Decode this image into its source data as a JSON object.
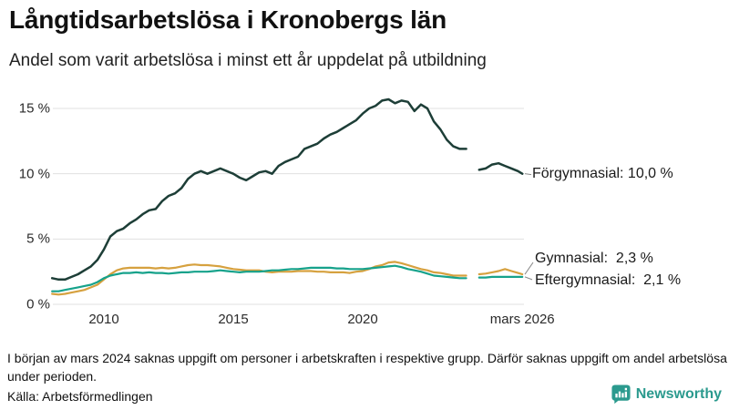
{
  "header": {
    "title": "Långtidsarbetslösa i Kronobergs län",
    "subtitle": "Andel som varit arbetslösa i minst ett år uppdelat på utbildning"
  },
  "footer": {
    "footnote": "I början av mars 2024 saknas uppgift om personer i arbetskraften i respektive grupp. Därför saknas uppgift om andel arbetslösa under perioden.",
    "source": "Källa: Arbetsförmedlingen"
  },
  "branding": {
    "name": "Newsworthy",
    "color": "#2b9a8e"
  },
  "colors": {
    "forgymnasial": "#1d3e37",
    "gymnasial": "#d6a13f",
    "eftergymnasial": "#16a28b",
    "gridline": "#e0e0e0",
    "connector": "#8a8a8a",
    "text": "#1a1a1a"
  },
  "chart_data": {
    "type": "line",
    "title": "Långtidsarbetslösa i Kronobergs län",
    "xlabel": "",
    "ylabel": "",
    "xlim": [
      2008,
      2026.17
    ],
    "ylim": [
      0,
      16
    ],
    "grid": true,
    "legend_position": "end-of-line-labels",
    "gap_period": "mars 2024",
    "x": [
      2008.0,
      2008.25,
      2008.5,
      2008.75,
      2009.0,
      2009.25,
      2009.5,
      2009.75,
      2010.0,
      2010.25,
      2010.5,
      2010.75,
      2011.0,
      2011.25,
      2011.5,
      2011.75,
      2012.0,
      2012.25,
      2012.5,
      2012.75,
      2013.0,
      2013.25,
      2013.5,
      2013.75,
      2014.0,
      2014.25,
      2014.5,
      2014.75,
      2015.0,
      2015.25,
      2015.5,
      2015.75,
      2016.0,
      2016.25,
      2016.5,
      2016.75,
      2017.0,
      2017.25,
      2017.5,
      2017.75,
      2018.0,
      2018.25,
      2018.5,
      2018.75,
      2019.0,
      2019.25,
      2019.5,
      2019.75,
      2020.0,
      2020.25,
      2020.5,
      2020.75,
      2021.0,
      2021.25,
      2021.5,
      2021.75,
      2022.0,
      2022.25,
      2022.5,
      2022.75,
      2023.0,
      2023.25,
      2023.5,
      2023.75,
      2024.0,
      2024.25,
      2024.5,
      2024.75,
      2025.0,
      2025.25,
      2025.5,
      2025.75,
      2026.0,
      2026.17
    ],
    "series": [
      {
        "name": "Förgymnasial",
        "label": "Förgymnasial: 10,0 %",
        "end_value": "10,0 %",
        "color": "#1d3e37",
        "stroke_width": 2.5,
        "values": [
          2.0,
          1.9,
          1.9,
          2.1,
          2.3,
          2.6,
          2.9,
          3.4,
          4.2,
          5.2,
          5.6,
          5.8,
          6.2,
          6.5,
          6.9,
          7.2,
          7.3,
          7.9,
          8.3,
          8.5,
          8.9,
          9.6,
          10.0,
          10.2,
          10.0,
          10.2,
          10.4,
          10.2,
          10.0,
          9.7,
          9.5,
          9.8,
          10.1,
          10.2,
          10.0,
          10.6,
          10.9,
          11.1,
          11.3,
          11.9,
          12.1,
          12.3,
          12.7,
          13.0,
          13.2,
          13.5,
          13.8,
          14.1,
          14.6,
          15.0,
          15.2,
          15.6,
          15.7,
          15.4,
          15.6,
          15.5,
          14.8,
          15.3,
          15.0,
          14.0,
          13.4,
          12.6,
          12.1,
          11.9,
          11.9,
          null,
          10.3,
          10.4,
          10.7,
          10.8,
          10.6,
          10.4,
          10.2,
          10.0
        ]
      },
      {
        "name": "Gymnasial",
        "label": "Gymnasial:  2,3 %",
        "end_value": "2,3 %",
        "color": "#d6a13f",
        "stroke_width": 2.2,
        "values": [
          0.8,
          0.75,
          0.8,
          0.9,
          1.0,
          1.1,
          1.3,
          1.5,
          1.9,
          2.3,
          2.6,
          2.75,
          2.8,
          2.8,
          2.8,
          2.8,
          2.75,
          2.8,
          2.75,
          2.8,
          2.9,
          3.0,
          3.05,
          3.0,
          3.0,
          2.95,
          2.9,
          2.8,
          2.7,
          2.65,
          2.6,
          2.6,
          2.6,
          2.5,
          2.45,
          2.5,
          2.5,
          2.5,
          2.55,
          2.55,
          2.55,
          2.5,
          2.5,
          2.45,
          2.45,
          2.45,
          2.4,
          2.5,
          2.55,
          2.7,
          2.9,
          3.0,
          3.2,
          3.25,
          3.15,
          3.0,
          2.85,
          2.7,
          2.6,
          2.45,
          2.4,
          2.3,
          2.2,
          2.2,
          2.2,
          null,
          2.3,
          2.35,
          2.45,
          2.55,
          2.7,
          2.55,
          2.4,
          2.3
        ]
      },
      {
        "name": "Eftergymnasial",
        "label": "Eftergymnasial:  2,1 %",
        "end_value": "2,1 %",
        "color": "#16a28b",
        "stroke_width": 2.2,
        "values": [
          1.0,
          1.0,
          1.1,
          1.2,
          1.3,
          1.4,
          1.5,
          1.7,
          2.0,
          2.2,
          2.3,
          2.4,
          2.4,
          2.45,
          2.4,
          2.45,
          2.4,
          2.4,
          2.35,
          2.4,
          2.45,
          2.45,
          2.5,
          2.5,
          2.5,
          2.55,
          2.6,
          2.55,
          2.5,
          2.45,
          2.5,
          2.5,
          2.5,
          2.55,
          2.6,
          2.6,
          2.65,
          2.7,
          2.7,
          2.75,
          2.8,
          2.8,
          2.8,
          2.8,
          2.75,
          2.75,
          2.7,
          2.7,
          2.7,
          2.75,
          2.8,
          2.85,
          2.9,
          2.95,
          2.85,
          2.7,
          2.6,
          2.5,
          2.35,
          2.2,
          2.15,
          2.1,
          2.05,
          2.0,
          2.0,
          null,
          2.05,
          2.05,
          2.1,
          2.1,
          2.1,
          2.1,
          2.1,
          2.1
        ]
      }
    ],
    "yticks": [
      {
        "value": 0,
        "label": "0 %"
      },
      {
        "value": 5,
        "label": "5 %"
      },
      {
        "value": 10,
        "label": "10 %"
      },
      {
        "value": 15,
        "label": "15 %"
      }
    ],
    "xticks": [
      {
        "x": 2010,
        "label": "2010"
      },
      {
        "x": 2015,
        "label": "2015"
      },
      {
        "x": 2020,
        "label": "2020"
      },
      {
        "x": 2026.17,
        "label": "mars 2026"
      }
    ]
  }
}
